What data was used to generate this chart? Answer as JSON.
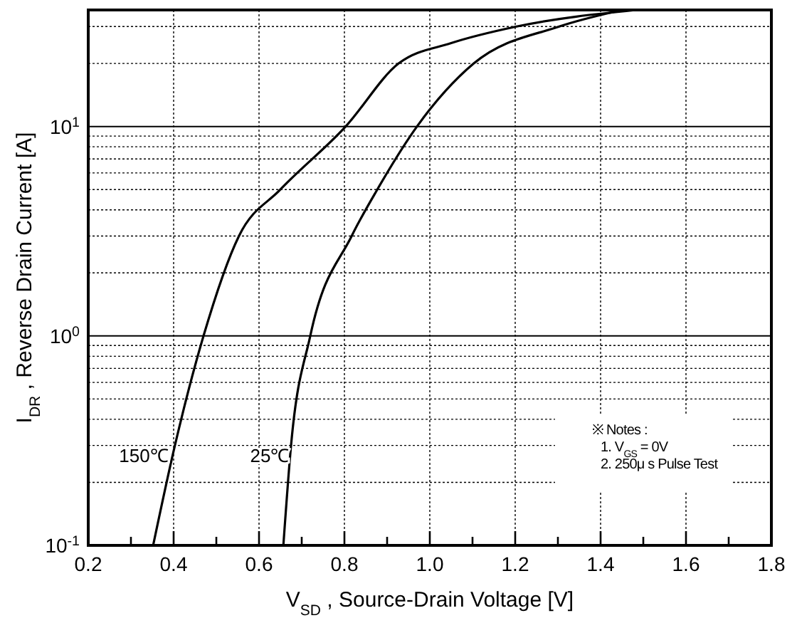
{
  "chart_data": {
    "type": "line",
    "xlabel": "V$_{SD}$ , Source-Drain Voltage  [V]",
    "ylabel": "I$_{DR}$ , Reverse Drain Current  [A]",
    "log": "y",
    "grid": true,
    "marker": "none",
    "line_style": "solid",
    "xlim": [
      0.2,
      1.8
    ],
    "xticks": [
      {
        "value": 0.2,
        "label": "0.2"
      },
      {
        "value": 0.3,
        "label": null
      },
      {
        "value": 0.4,
        "label": "0.4"
      },
      {
        "value": 0.5,
        "label": null
      },
      {
        "value": 0.6,
        "label": "0.6"
      },
      {
        "value": 0.7,
        "label": null
      },
      {
        "value": 0.8,
        "label": "0.8"
      },
      {
        "value": 0.9,
        "label": null
      },
      {
        "value": 1.0,
        "label": "1.0"
      },
      {
        "value": 1.1,
        "label": null
      },
      {
        "value": 1.2,
        "label": "1.2"
      },
      {
        "value": 1.3,
        "label": null
      },
      {
        "value": 1.4,
        "label": "1.4"
      },
      {
        "value": 1.5,
        "label": null
      },
      {
        "value": 1.6,
        "label": "1.6"
      },
      {
        "value": 1.7,
        "label": null
      },
      {
        "value": 1.8,
        "label": "1.8"
      }
    ],
    "ylim": [
      0.1,
      36
    ],
    "yticks": [
      {
        "value": 0.1,
        "label": "10$^{-1}$"
      },
      {
        "value": 0.2,
        "label": null
      },
      {
        "value": 0.3,
        "label": null
      },
      {
        "value": 0.4,
        "label": null
      },
      {
        "value": 0.5,
        "label": null
      },
      {
        "value": 0.6,
        "label": null
      },
      {
        "value": 0.7,
        "label": null
      },
      {
        "value": 0.8,
        "label": null
      },
      {
        "value": 0.9,
        "label": null
      },
      {
        "value": 1,
        "label": "10$^{0}$"
      },
      {
        "value": 2,
        "label": null
      },
      {
        "value": 3,
        "label": null
      },
      {
        "value": 4,
        "label": null
      },
      {
        "value": 5,
        "label": null
      },
      {
        "value": 6,
        "label": null
      },
      {
        "value": 7,
        "label": null
      },
      {
        "value": 8,
        "label": null
      },
      {
        "value": 9,
        "label": null
      },
      {
        "value": 10,
        "label": "10$^{1}$"
      },
      {
        "value": 20,
        "label": null
      },
      {
        "value": 30,
        "label": null
      }
    ],
    "series": [
      {
        "name": "150℃",
        "color": "#000000",
        "x": [
          0.352,
          0.403,
          0.47,
          0.553,
          0.65,
          0.803,
          0.927,
          1.05,
          1.203,
          1.483
        ],
        "values": [
          0.1,
          0.3,
          1,
          3,
          5,
          10,
          20,
          25,
          30,
          36
        ]
      },
      {
        "name": "25℃",
        "color": "#000000",
        "x": [
          0.657,
          0.675,
          0.72,
          0.817,
          0.877,
          0.97,
          1.103,
          1.303,
          1.45
        ],
        "values": [
          0.1,
          0.3,
          1,
          3,
          5,
          10,
          20,
          30,
          36
        ]
      }
    ],
    "annotations": [
      "※ Notes :",
      "1. V$_{GS}$ = 0V",
      "2. 250μ s Pulse Test"
    ]
  }
}
